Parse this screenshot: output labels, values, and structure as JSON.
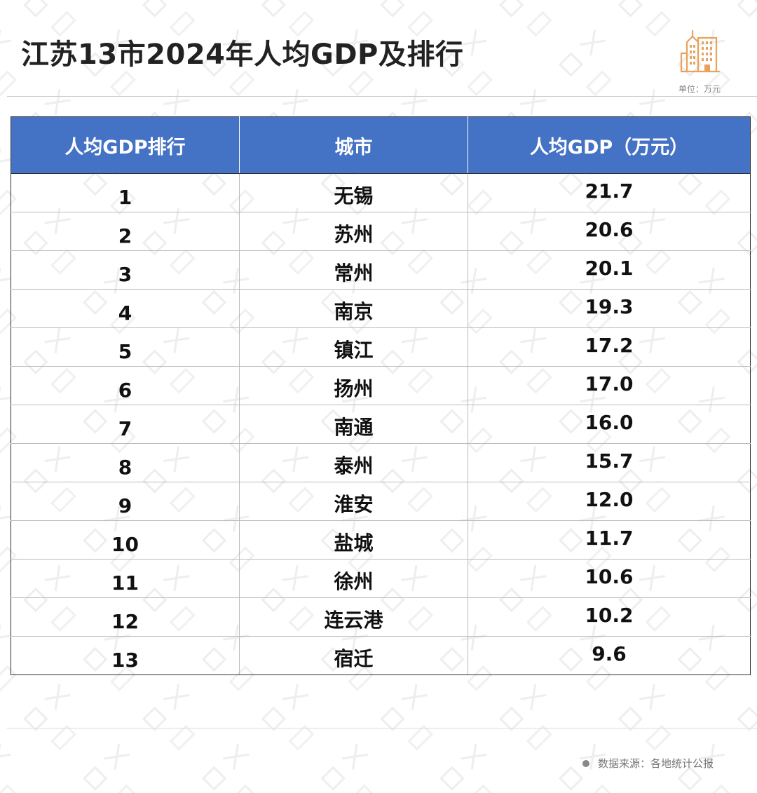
{
  "title": "江苏13市2024年人均GDP及排行",
  "unit_note": "单位：万元",
  "source": "数据来源：各地统计公报",
  "icon": "building-icon",
  "colors": {
    "header_bg": "#4472c4",
    "header_text": "#ffffff",
    "icon_accent": "#e8a25b"
  },
  "chart_data": {
    "type": "table",
    "title": "江苏13市2024年人均GDP及排行",
    "columns": [
      "人均GDP排行",
      "城市",
      "人均GDP（万元）"
    ],
    "rows": [
      {
        "rank": "1",
        "city": "无锡",
        "value": "21.7"
      },
      {
        "rank": "2",
        "city": "苏州",
        "value": "20.6"
      },
      {
        "rank": "3",
        "city": "常州",
        "value": "20.1"
      },
      {
        "rank": "4",
        "city": "南京",
        "value": "19.3"
      },
      {
        "rank": "5",
        "city": "镇江",
        "value": "17.2"
      },
      {
        "rank": "6",
        "city": "扬州",
        "value": "17.0"
      },
      {
        "rank": "7",
        "city": "南通",
        "value": "16.0"
      },
      {
        "rank": "8",
        "city": "泰州",
        "value": "15.7"
      },
      {
        "rank": "9",
        "city": "淮安",
        "value": "12.0"
      },
      {
        "rank": "10",
        "city": "盐城",
        "value": "11.7"
      },
      {
        "rank": "11",
        "city": "徐州",
        "value": "10.6"
      },
      {
        "rank": "12",
        "city": "连云港",
        "value": "10.2"
      },
      {
        "rank": "13",
        "city": "宿迁",
        "value": "9.6"
      }
    ]
  }
}
